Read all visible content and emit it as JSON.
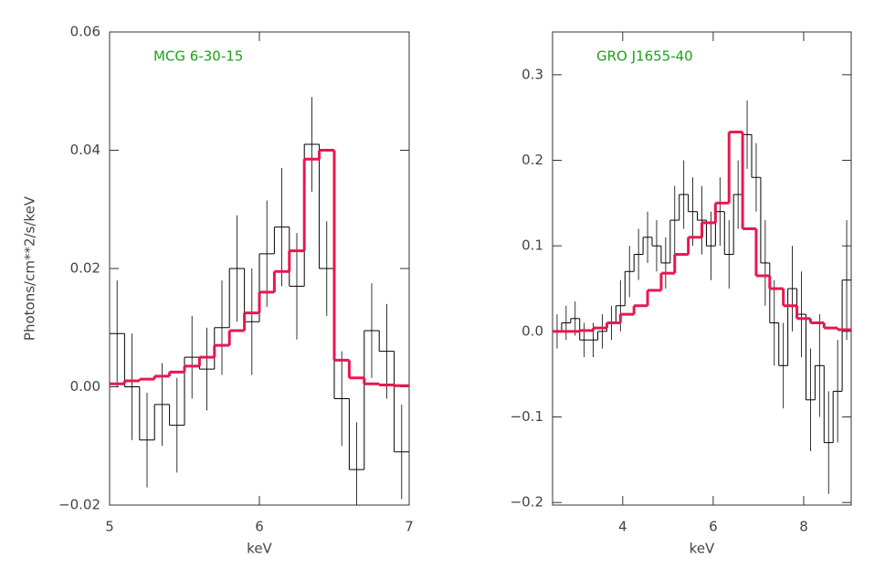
{
  "chart_data": [
    {
      "type": "step",
      "title": "MCG 6-30-15",
      "title_color": "#1aa31a",
      "xlabel": "keV",
      "ylabel": "Photons/cm**2/s/keV",
      "xlim": [
        5,
        7
      ],
      "xticks": [
        5,
        6,
        7
      ],
      "ylim": [
        -0.02,
        0.06
      ],
      "yticks": [
        {
          "value": -0.02,
          "label": "−0.02"
        },
        {
          "value": 0,
          "label": "0.00"
        },
        0.02,
        0.04,
        0.06
      ],
      "series": [
        {
          "color": "#000000",
          "bins": [
            5.0,
            5.1,
            5.2,
            5.3,
            5.4,
            5.5,
            5.6,
            5.7,
            5.8,
            5.9,
            6.0,
            6.1,
            6.2,
            6.3,
            6.4,
            6.5,
            6.6,
            6.7,
            6.8,
            6.9,
            7.0
          ],
          "values": [
            0.009,
            0.0,
            -0.009,
            -0.003,
            -0.0065,
            0.005,
            0.003,
            0.01,
            0.02,
            0.011,
            0.0225,
            0.027,
            0.017,
            0.041,
            0.02,
            -0.002,
            -0.014,
            0.0095,
            0.006,
            -0.011
          ],
          "errors": [
            0.009,
            0.009,
            0.008,
            0.007,
            0.008,
            0.007,
            0.007,
            0.008,
            0.009,
            0.009,
            0.009,
            0.01,
            0.009,
            0.008,
            0.008,
            0.008,
            0.008,
            0.008,
            0.008,
            0.008
          ]
        },
        {
          "color": "#e8174f",
          "bins": [
            5.0,
            5.1,
            5.2,
            5.3,
            5.4,
            5.5,
            5.6,
            5.7,
            5.8,
            5.9,
            6.0,
            6.1,
            6.2,
            6.3,
            6.4,
            6.5,
            6.6,
            6.7,
            6.8,
            6.9,
            7.0
          ],
          "values": [
            0.0005,
            0.001,
            0.0013,
            0.0018,
            0.0025,
            0.0035,
            0.005,
            0.007,
            0.0095,
            0.0125,
            0.016,
            0.0195,
            0.023,
            0.0385,
            0.04,
            0.0045,
            0.0015,
            0.0005,
            0.0003,
            0.0002
          ]
        }
      ]
    },
    {
      "type": "step",
      "title": "GRO J1655-40",
      "title_color": "#1aa31a",
      "xlabel": "keV",
      "xlim": [
        2.45,
        9.05
      ],
      "xticks": [
        4,
        6,
        8
      ],
      "ylim": [
        -0.203,
        0.35
      ],
      "yticks": [
        {
          "value": -0.2,
          "label": "−0.2"
        },
        {
          "value": -0.1,
          "label": "−0.1"
        },
        {
          "value": 0,
          "label": "0.0"
        },
        0.1,
        0.2,
        0.3
      ],
      "series": [
        {
          "color": "#000000",
          "bins": [
            2.45,
            2.65,
            2.85,
            3.05,
            3.25,
            3.45,
            3.65,
            3.85,
            4.05,
            4.25,
            4.45,
            4.65,
            4.85,
            5.05,
            5.25,
            5.45,
            5.65,
            5.85,
            6.05,
            6.25,
            6.45,
            6.65,
            6.85,
            7.05,
            7.25,
            7.45,
            7.65,
            7.85,
            8.05,
            8.25,
            8.45,
            8.65,
            8.85,
            9.05
          ],
          "values": [
            0.0,
            0.01,
            0.015,
            -0.01,
            -0.01,
            0.0,
            0.01,
            0.03,
            0.07,
            0.09,
            0.11,
            0.1,
            0.08,
            0.13,
            0.16,
            0.14,
            0.13,
            0.1,
            0.14,
            0.09,
            0.16,
            0.23,
            0.18,
            0.08,
            0.01,
            -0.04,
            0.05,
            0.02,
            -0.08,
            -0.04,
            -0.13,
            -0.07,
            0.06
          ],
          "errors": [
            0.02,
            0.02,
            0.02,
            0.02,
            0.02,
            0.02,
            0.02,
            0.03,
            0.03,
            0.03,
            0.03,
            0.03,
            0.03,
            0.04,
            0.04,
            0.04,
            0.04,
            0.04,
            0.04,
            0.04,
            0.04,
            0.04,
            0.04,
            0.05,
            0.05,
            0.05,
            0.05,
            0.05,
            0.06,
            0.06,
            0.06,
            0.06,
            0.07
          ]
        },
        {
          "color": "#e8174f",
          "bins": [
            2.45,
            2.75,
            3.05,
            3.35,
            3.65,
            3.95,
            4.25,
            4.55,
            4.85,
            5.15,
            5.45,
            5.75,
            6.05,
            6.35,
            6.65,
            6.95,
            7.25,
            7.55,
            7.85,
            8.15,
            8.45,
            8.75,
            9.05
          ],
          "values": [
            0.0,
            0.0,
            0.001,
            0.004,
            0.01,
            0.02,
            0.03,
            0.048,
            0.068,
            0.09,
            0.11,
            0.127,
            0.15,
            0.233,
            0.12,
            0.065,
            0.05,
            0.03,
            0.015,
            0.01,
            0.004,
            0.002
          ]
        }
      ]
    }
  ]
}
